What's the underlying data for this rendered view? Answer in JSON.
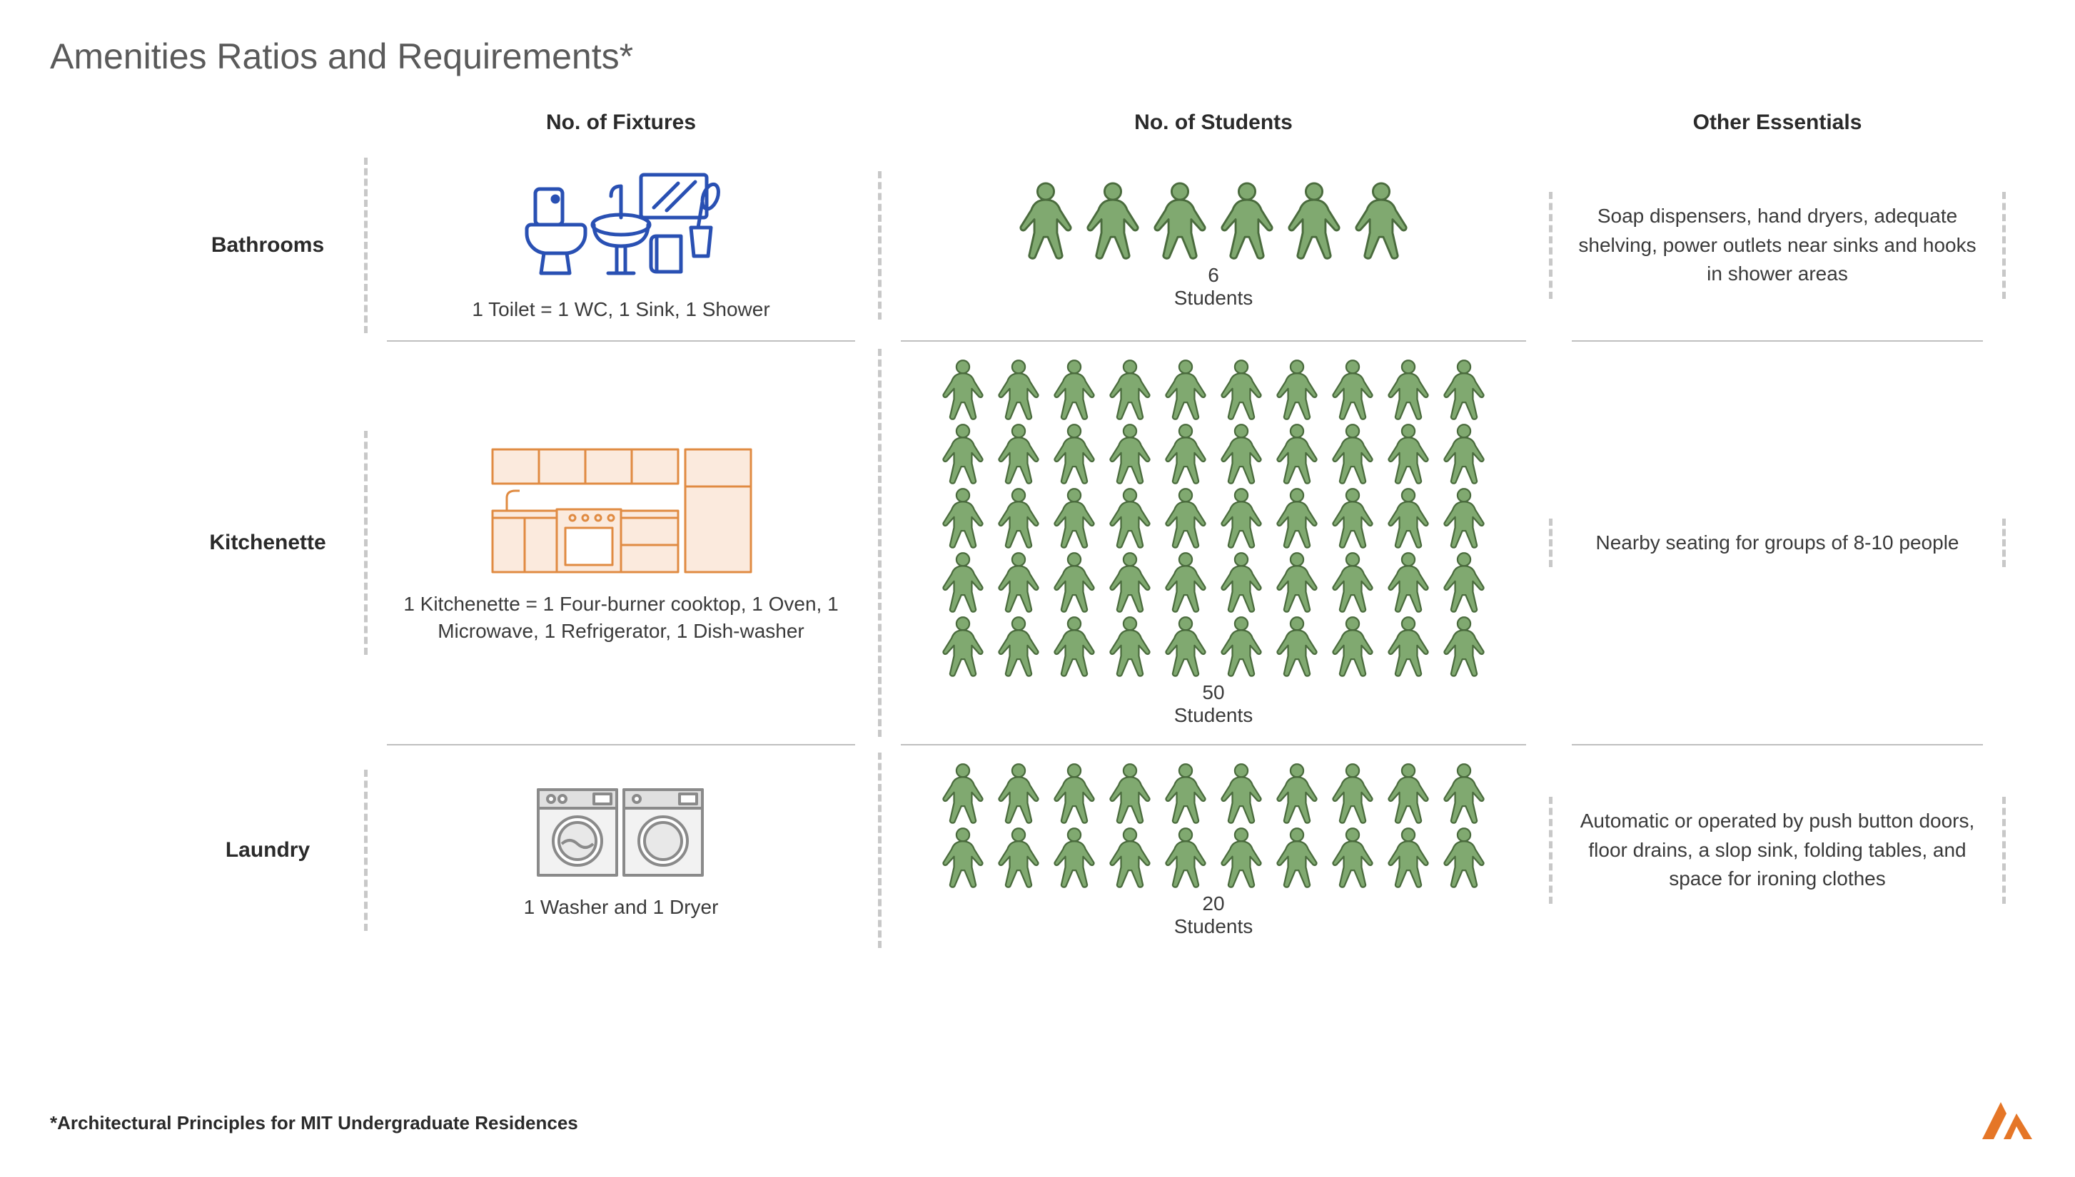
{
  "title": "Amenities Ratios and Requirements*",
  "footnote": "*Architectural Principles for MIT Undergraduate Residences",
  "columns": {
    "fixtures": "No. of Fixtures",
    "students": "No. of Students",
    "other": "Other Essentials"
  },
  "students_word": "Students",
  "colors": {
    "title": "#5a5a5a",
    "text": "#3a3a3a",
    "divider": "#c8c8c8",
    "hline": "#bfbfbf",
    "person_fill": "#80a970",
    "person_stroke": "#4a6b3d",
    "bathroom_stroke": "#2950b3",
    "kitchen_stroke": "#e08b42",
    "kitchen_fill": "#fbeadd",
    "laundry_stroke": "#8a8a8a",
    "laundry_fill": "#e8e8e8",
    "logo": "#e57627"
  },
  "rows": [
    {
      "label": "Bathrooms",
      "fixture_caption": "1 Toilet = 1 WC, 1 Sink, 1 Shower",
      "student_count": 6,
      "students_per_row": 6,
      "essentials": "Soap dispensers, hand dryers, adequate shelving, power outlets near sinks and hooks in shower areas",
      "icon": "bathroom"
    },
    {
      "label": "Kitchenette",
      "fixture_caption": "1 Kitchenette = 1 Four-burner cooktop, 1 Oven, 1 Microwave, 1 Refrigerator, 1 Dish-washer",
      "student_count": 50,
      "students_per_row": 10,
      "essentials": "Nearby seating for groups of 8-10 people",
      "icon": "kitchenette"
    },
    {
      "label": "Laundry",
      "fixture_caption": "1 Washer and 1 Dryer",
      "student_count": 20,
      "students_per_row": 10,
      "essentials": "Automatic or operated by push button doors, floor drains, a slop sink, folding tables, and space for ironing clothes",
      "icon": "laundry"
    }
  ]
}
